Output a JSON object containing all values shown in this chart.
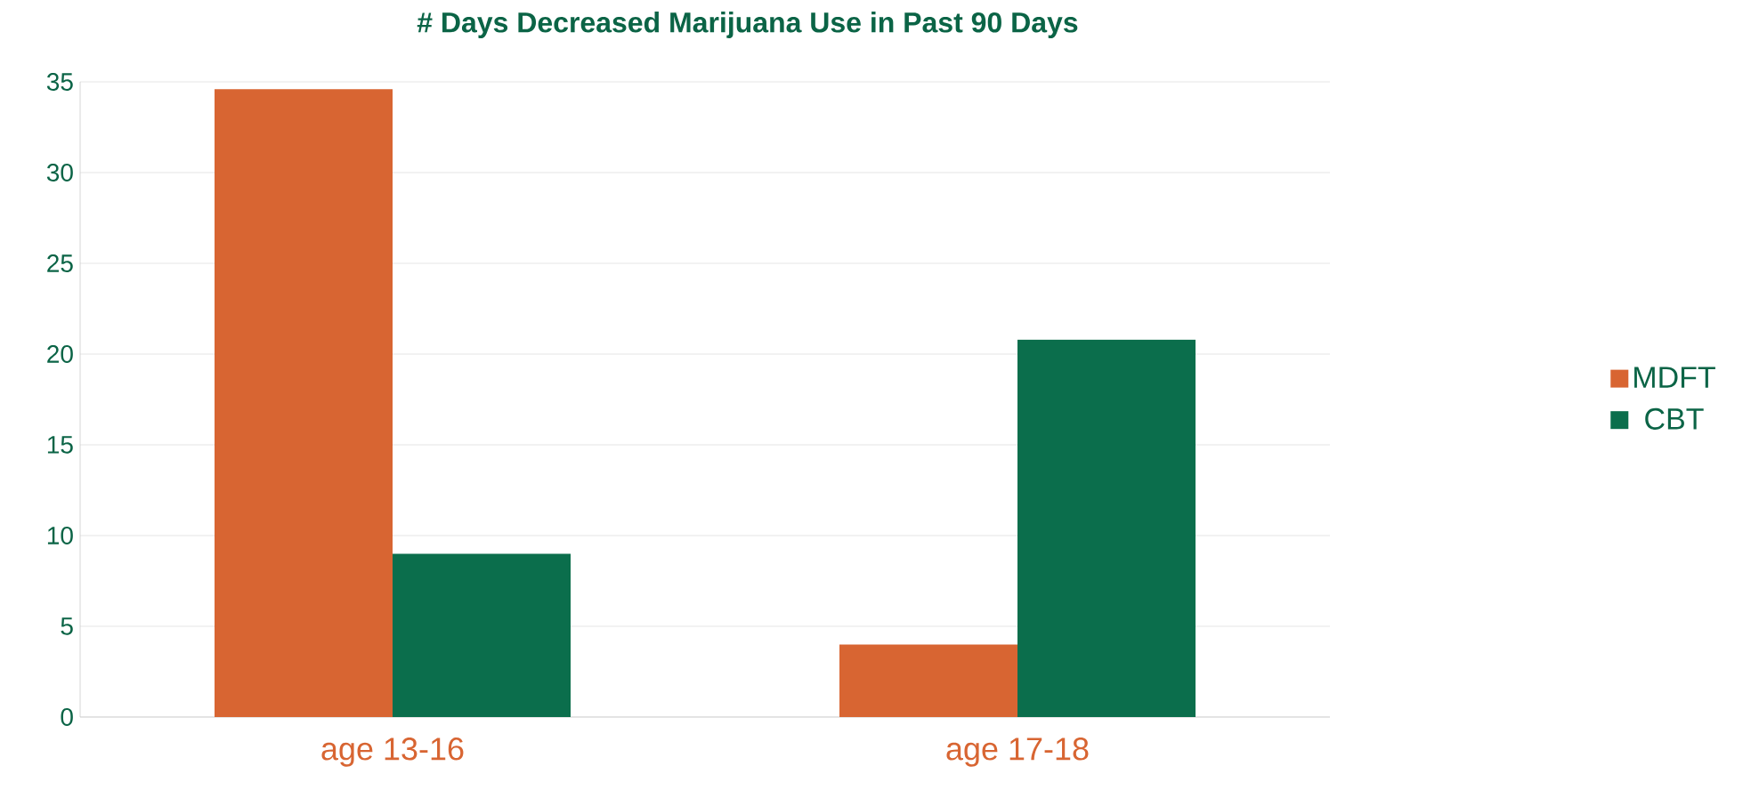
{
  "chart_data": {
    "type": "bar",
    "title": "# Days Decreased Marijuana Use in Past 90 Days",
    "categories": [
      "age 13-16",
      "age 17-18"
    ],
    "series": [
      {
        "name": "MDFT",
        "color": "#d86532",
        "values": [
          34.6,
          4.0
        ]
      },
      {
        "name": "CBT",
        "color": "#0b6e4c",
        "values": [
          9.0,
          20.8
        ]
      }
    ],
    "ylim": [
      0,
      35
    ],
    "yticks": [
      0,
      5,
      10,
      15,
      20,
      25,
      30,
      35
    ],
    "grid": "y",
    "legend": "right"
  }
}
